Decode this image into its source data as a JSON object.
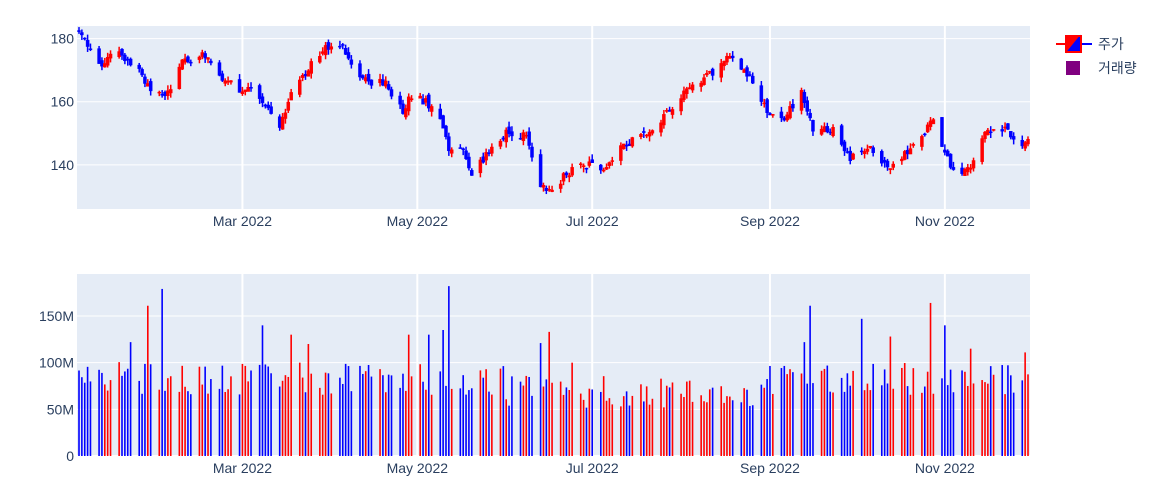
{
  "chart_data": [
    {
      "type": "candlestick",
      "series_name": "주가",
      "increasing_color": "#ff0000",
      "decreasing_color": "#0000ff",
      "plot_bg": "#e5ecf6",
      "x_range": [
        "2022-01-03",
        "2022-11-30"
      ],
      "ylim": [
        126,
        184
      ],
      "x_ticks": [
        {
          "date": "2022-03-01",
          "label": "Mar 2022"
        },
        {
          "date": "2022-05-01",
          "label": "May 2022"
        },
        {
          "date": "2022-07-01",
          "label": "Jul 2022"
        },
        {
          "date": "2022-09-01",
          "label": "Sep 2022"
        },
        {
          "date": "2022-11-01",
          "label": "Nov 2022"
        }
      ],
      "y_ticks": [
        {
          "value": 140,
          "label": "140"
        },
        {
          "value": 160,
          "label": "160"
        },
        {
          "value": 180,
          "label": "180"
        }
      ],
      "anchor_closes": [
        [
          "2022-01-03",
          182
        ],
        [
          "2022-01-05",
          179
        ],
        [
          "2022-01-10",
          172
        ],
        [
          "2022-01-14",
          174
        ],
        [
          "2022-01-18",
          175
        ],
        [
          "2022-01-24",
          170
        ],
        [
          "2022-01-28",
          163
        ],
        [
          "2022-02-02",
          161
        ],
        [
          "2022-02-08",
          172
        ],
        [
          "2022-02-16",
          175
        ],
        [
          "2022-02-22",
          168
        ],
        [
          "2022-02-28",
          164
        ],
        [
          "2022-03-03",
          165
        ],
        [
          "2022-03-07",
          162
        ],
        [
          "2022-03-11",
          156
        ],
        [
          "2022-03-14",
          152
        ],
        [
          "2022-03-18",
          162
        ],
        [
          "2022-03-25",
          172
        ],
        [
          "2022-03-30",
          177
        ],
        [
          "2022-04-05",
          178
        ],
        [
          "2022-04-08",
          171
        ],
        [
          "2022-04-14",
          166
        ],
        [
          "2022-04-20",
          166
        ],
        [
          "2022-04-26",
          157
        ],
        [
          "2022-04-29",
          162
        ],
        [
          "2022-05-04",
          160
        ],
        [
          "2022-05-09",
          155
        ],
        [
          "2022-05-12",
          144
        ],
        [
          "2022-05-16",
          146
        ],
        [
          "2022-05-20",
          137
        ],
        [
          "2022-05-27",
          145
        ],
        [
          "2022-06-01",
          150
        ],
        [
          "2022-06-08",
          149
        ],
        [
          "2022-06-13",
          134
        ],
        [
          "2022-06-16",
          131
        ],
        [
          "2022-06-22",
          137
        ],
        [
          "2022-06-28",
          140
        ],
        [
          "2022-07-05",
          139
        ],
        [
          "2022-07-12",
          146
        ],
        [
          "2022-07-20",
          150
        ],
        [
          "2022-07-28",
          157
        ],
        [
          "2022-08-03",
          164
        ],
        [
          "2022-08-10",
          168
        ],
        [
          "2022-08-18",
          174
        ],
        [
          "2022-08-25",
          168
        ],
        [
          "2022-08-31",
          157
        ],
        [
          "2022-09-06",
          155
        ],
        [
          "2022-09-12",
          163
        ],
        [
          "2022-09-16",
          151
        ],
        [
          "2022-09-23",
          151
        ],
        [
          "2022-09-29",
          142
        ],
        [
          "2022-10-05",
          146
        ],
        [
          "2022-10-12",
          139
        ],
        [
          "2022-10-17",
          142
        ],
        [
          "2022-10-25",
          150
        ],
        [
          "2022-10-28",
          155
        ],
        [
          "2022-11-03",
          139
        ],
        [
          "2022-11-09",
          138
        ],
        [
          "2022-11-14",
          149
        ],
        [
          "2022-11-18",
          151
        ],
        [
          "2022-11-23",
          151
        ],
        [
          "2022-11-28",
          145
        ],
        [
          "2022-11-30",
          148
        ]
      ]
    },
    {
      "type": "bar",
      "series_name": "거래량",
      "legend_color": "#800080",
      "plot_bg": "#e5ecf6",
      "x_range": [
        "2022-01-03",
        "2022-11-30"
      ],
      "ylim": [
        0,
        195000000
      ],
      "x_ticks": [
        {
          "date": "2022-03-01",
          "label": "Mar 2022"
        },
        {
          "date": "2022-05-01",
          "label": "May 2022"
        },
        {
          "date": "2022-07-01",
          "label": "Jul 2022"
        },
        {
          "date": "2022-09-01",
          "label": "Sep 2022"
        },
        {
          "date": "2022-11-01",
          "label": "Nov 2022"
        }
      ],
      "y_ticks": [
        {
          "value": 0,
          "label": "0"
        },
        {
          "value": 50000000,
          "label": "50M"
        },
        {
          "value": 100000000,
          "label": "100M"
        },
        {
          "value": 150000000,
          "label": "150M"
        }
      ],
      "volume_peaks": [
        [
          "2022-01-27",
          161000000
        ],
        [
          "2022-02-01",
          179000000
        ],
        [
          "2022-01-21",
          122000000
        ],
        [
          "2022-03-08",
          140000000
        ],
        [
          "2022-03-18",
          130000000
        ],
        [
          "2022-03-24",
          120000000
        ],
        [
          "2022-04-28",
          130000000
        ],
        [
          "2022-05-05",
          130000000
        ],
        [
          "2022-05-12",
          182000000
        ],
        [
          "2022-05-10",
          135000000
        ],
        [
          "2022-06-13",
          121000000
        ],
        [
          "2022-06-16",
          133000000
        ],
        [
          "2022-06-24",
          100000000
        ],
        [
          "2022-09-13",
          122000000
        ],
        [
          "2022-09-15",
          161000000
        ],
        [
          "2022-10-03",
          147000000
        ],
        [
          "2022-10-13",
          128000000
        ],
        [
          "2022-10-27",
          164000000
        ],
        [
          "2022-11-01",
          140000000
        ],
        [
          "2022-11-10",
          115000000
        ],
        [
          "2022-11-29",
          111000000
        ]
      ]
    }
  ],
  "legend": {
    "items": [
      {
        "label": "주가",
        "swatch": "candle"
      },
      {
        "label": "거래량",
        "swatch": "square"
      }
    ]
  }
}
